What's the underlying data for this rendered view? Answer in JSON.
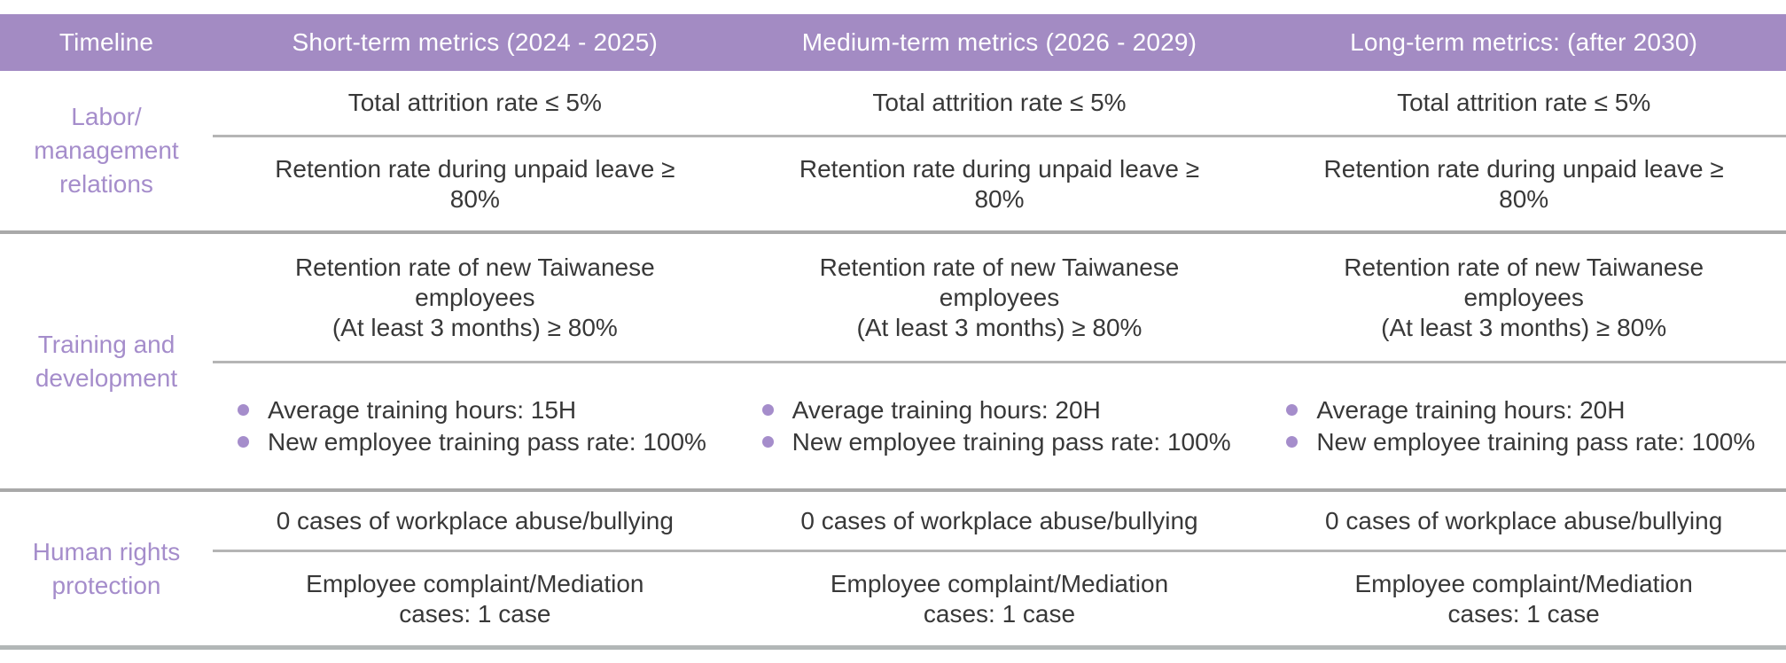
{
  "table": {
    "header": {
      "timeline": "Timeline",
      "columns": [
        "Short-term metrics (2024 - 2025)",
        "Medium-term metrics (2026 - 2029)",
        "Long-term metrics: (after 2030)"
      ]
    },
    "groups": [
      {
        "label": "Labor/\nmanagement\nrelations",
        "row_a": [
          "Total attrition rate ≤ 5%",
          "Total attrition rate ≤ 5%",
          "Total attrition rate ≤ 5%"
        ],
        "row_b": [
          "Retention rate during unpaid leave ≥\n80%",
          "Retention rate during unpaid leave ≥\n80%",
          "Retention rate during unpaid leave ≥\n80%"
        ]
      },
      {
        "label": "Training and\ndevelopment",
        "row_a": [
          "Retention rate of new Taiwanese\nemployees\n(At least 3 months) ≥ 80%",
          "Retention rate of new Taiwanese\nemployees\n(At least 3 months) ≥ 80%",
          "Retention rate of new Taiwanese\nemployees\n(At least 3 months) ≥ 80%"
        ],
        "bullets": [
          [
            "Average training hours: 15H",
            "New employee training pass rate: 100%"
          ],
          [
            "Average training hours: 20H",
            "New employee training pass rate: 100%"
          ],
          [
            "Average training hours: 20H",
            "New employee training pass rate: 100%"
          ]
        ]
      },
      {
        "label": "Human rights\nprotection",
        "row_a": [
          "0 cases of workplace abuse/bullying",
          "0 cases of workplace abuse/bullying",
          "0 cases of workplace abuse/bullying"
        ],
        "row_b": [
          "Employee complaint/Mediation\ncases: 1 case",
          "Employee complaint/Mediation\ncases: 1 case",
          "Employee complaint/Mediation\ncases: 1 case"
        ]
      }
    ],
    "colors": {
      "header_bg": "#a38bc3",
      "header_text": "#ffffff",
      "label_text": "#a58dcb",
      "body_text": "#383838",
      "inner_divider": "#b5b5b5",
      "group_divider": "#a9a9a9",
      "bottom_bar": "#b2b7b7"
    }
  }
}
